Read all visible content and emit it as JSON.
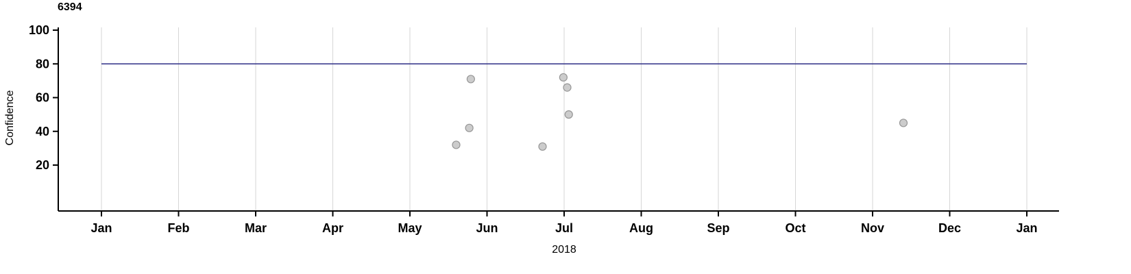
{
  "chart_data": {
    "type": "scatter",
    "title": "6394",
    "xlabel": "2018",
    "ylabel": "Confidence",
    "x_axis_unit": "months from Jan 2018 (0 = Jan 2018, 12 = Jan 2019)",
    "x_ticks": [
      "Jan",
      "Feb",
      "Mar",
      "Apr",
      "May",
      "Jun",
      "Jul",
      "Aug",
      "Sep",
      "Oct",
      "Nov",
      "Dec",
      "Jan"
    ],
    "y_ticks": [
      20,
      40,
      60,
      80,
      100
    ],
    "ylim": [
      -7,
      102
    ],
    "xlim_months": [
      -0.56,
      12.42
    ],
    "grid": "vertical-monthly",
    "legend": "none",
    "threshold": {
      "value": 80,
      "color": "#2d2d86"
    },
    "points": [
      {
        "x": 4.6,
        "y": 32
      },
      {
        "x": 4.77,
        "y": 42
      },
      {
        "x": 4.79,
        "y": 71
      },
      {
        "x": 5.72,
        "y": 31
      },
      {
        "x": 5.99,
        "y": 72
      },
      {
        "x": 6.04,
        "y": 66
      },
      {
        "x": 6.06,
        "y": 50
      },
      {
        "x": 10.4,
        "y": 45
      }
    ],
    "point_style": {
      "fill": "#cccccc",
      "stroke": "#969696",
      "radius": 5.5
    },
    "colors": {
      "grid": "#d6d6d6",
      "axis": "#000000",
      "text": "#000000",
      "background": "#ffffff"
    }
  }
}
